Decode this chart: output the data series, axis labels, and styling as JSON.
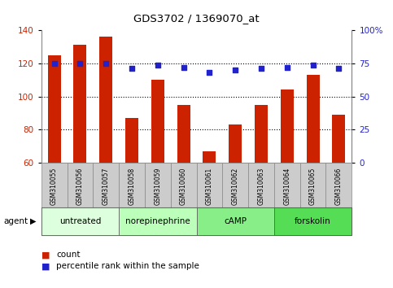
{
  "title": "GDS3702 / 1369070_at",
  "categories": [
    "GSM310055",
    "GSM310056",
    "GSM310057",
    "GSM310058",
    "GSM310059",
    "GSM310060",
    "GSM310061",
    "GSM310062",
    "GSM310063",
    "GSM310064",
    "GSM310065",
    "GSM310066"
  ],
  "counts": [
    125,
    131,
    136,
    87,
    110,
    95,
    67,
    83,
    95,
    104,
    113,
    89
  ],
  "percentiles": [
    75,
    75,
    75,
    71,
    74,
    72,
    68,
    70,
    71,
    72,
    74,
    71
  ],
  "ylim_left": [
    60,
    140
  ],
  "ylim_right": [
    0,
    100
  ],
  "yticks_left": [
    60,
    80,
    100,
    120,
    140
  ],
  "yticks_right": [
    0,
    25,
    50,
    75,
    100
  ],
  "ytick_labels_right": [
    "0",
    "25",
    "50",
    "75",
    "100%"
  ],
  "bar_color": "#cc2200",
  "dot_color": "#2222cc",
  "agent_groups": [
    {
      "label": "untreated",
      "indices": [
        0,
        1,
        2
      ],
      "color": "#ddffdd"
    },
    {
      "label": "norepinephrine",
      "indices": [
        3,
        4,
        5
      ],
      "color": "#bbffbb"
    },
    {
      "label": "cAMP",
      "indices": [
        6,
        7,
        8
      ],
      "color": "#88ee88"
    },
    {
      "label": "forskolin",
      "indices": [
        9,
        10,
        11
      ],
      "color": "#55dd55"
    }
  ],
  "agent_label": "agent",
  "legend_count_label": "count",
  "legend_pct_label": "percentile rank within the sample",
  "tick_area_color": "#cccccc",
  "bar_width": 0.5
}
